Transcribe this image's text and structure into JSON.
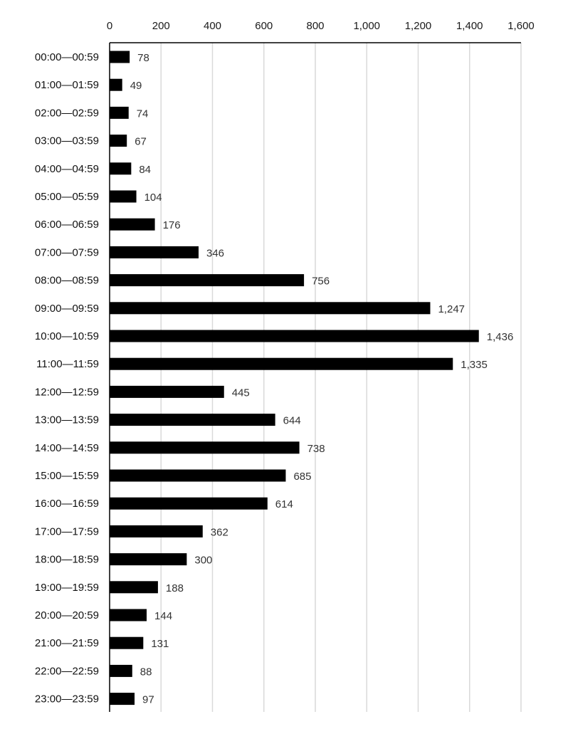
{
  "chart_data": {
    "type": "bar",
    "orientation": "horizontal",
    "title": "",
    "xlabel": "",
    "ylabel": "",
    "xlim": [
      0,
      1600
    ],
    "tick_step": 200,
    "tick_labels": [
      "0",
      "200",
      "400",
      "600",
      "800",
      "1,000",
      "1,200",
      "1,400",
      "1,600"
    ],
    "grid": true,
    "x_axis_position": "top",
    "categories": [
      "00:00—00:59",
      "01:00—01:59",
      "02:00—02:59",
      "03:00—03:59",
      "04:00—04:59",
      "05:00—05:59",
      "06:00—06:59",
      "07:00—07:59",
      "08:00—08:59",
      "09:00—09:59",
      "10:00—10:59",
      "11:00—11:59",
      "12:00—12:59",
      "13:00—13:59",
      "14:00—14:59",
      "15:00—15:59",
      "16:00—16:59",
      "17:00—17:59",
      "18:00—18:59",
      "19:00—19:59",
      "20:00—20:59",
      "21:00—21:59",
      "22:00—22:59",
      "23:00—23:59"
    ],
    "values": [
      78,
      49,
      74,
      67,
      84,
      104,
      176,
      346,
      756,
      1247,
      1436,
      1335,
      445,
      644,
      738,
      685,
      614,
      362,
      300,
      188,
      144,
      131,
      88,
      97
    ],
    "value_labels": [
      "78",
      "49",
      "74",
      "67",
      "84",
      "104",
      "176",
      "346",
      "756",
      "1,247",
      "1,436",
      "1,335",
      "445",
      "644",
      "738",
      "685",
      "614",
      "362",
      "300",
      "188",
      "144",
      "131",
      "88",
      "97"
    ],
    "colors": {
      "bar": "#000000",
      "grid": "#d9d9d9",
      "axis": "#000000"
    }
  }
}
